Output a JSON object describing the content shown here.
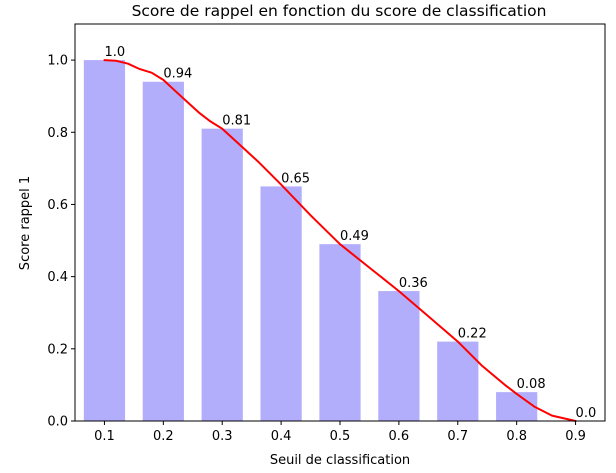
{
  "chart_data": {
    "type": "bar",
    "title": "Score de rappel en fonction du score de classification",
    "xlabel": "Seuil de classification",
    "ylabel": "Score rappel 1",
    "categories": [
      "0.1",
      "0.2",
      "0.3",
      "0.4",
      "0.5",
      "0.6",
      "0.7",
      "0.8",
      "0.9"
    ],
    "values": [
      1.0,
      0.94,
      0.81,
      0.65,
      0.49,
      0.36,
      0.22,
      0.08,
      0.0
    ],
    "data_labels": [
      "1.0",
      "0.94",
      "0.81",
      "0.65",
      "0.49",
      "0.36",
      "0.22",
      "0.08",
      "0.0"
    ],
    "line": {
      "x": [
        0.1,
        0.12,
        0.14,
        0.16,
        0.18,
        0.2,
        0.22,
        0.24,
        0.26,
        0.28,
        0.3,
        0.33,
        0.36,
        0.4,
        0.45,
        0.5,
        0.55,
        0.6,
        0.65,
        0.7,
        0.74,
        0.78,
        0.8,
        0.83,
        0.86,
        0.9
      ],
      "y": [
        1.0,
        0.998,
        0.99,
        0.975,
        0.965,
        0.945,
        0.915,
        0.885,
        0.855,
        0.83,
        0.81,
        0.765,
        0.72,
        0.655,
        0.57,
        0.49,
        0.425,
        0.36,
        0.29,
        0.22,
        0.155,
        0.1,
        0.075,
        0.04,
        0.015,
        0.0
      ],
      "color": "#ff0000"
    },
    "bar_color": "#b3aefb",
    "xlim": [
      0.05,
      0.95
    ],
    "ylim": [
      0.0,
      1.1
    ],
    "yticks": [
      "0.0",
      "0.2",
      "0.4",
      "0.6",
      "0.8",
      "1.0"
    ],
    "grid": false
  }
}
